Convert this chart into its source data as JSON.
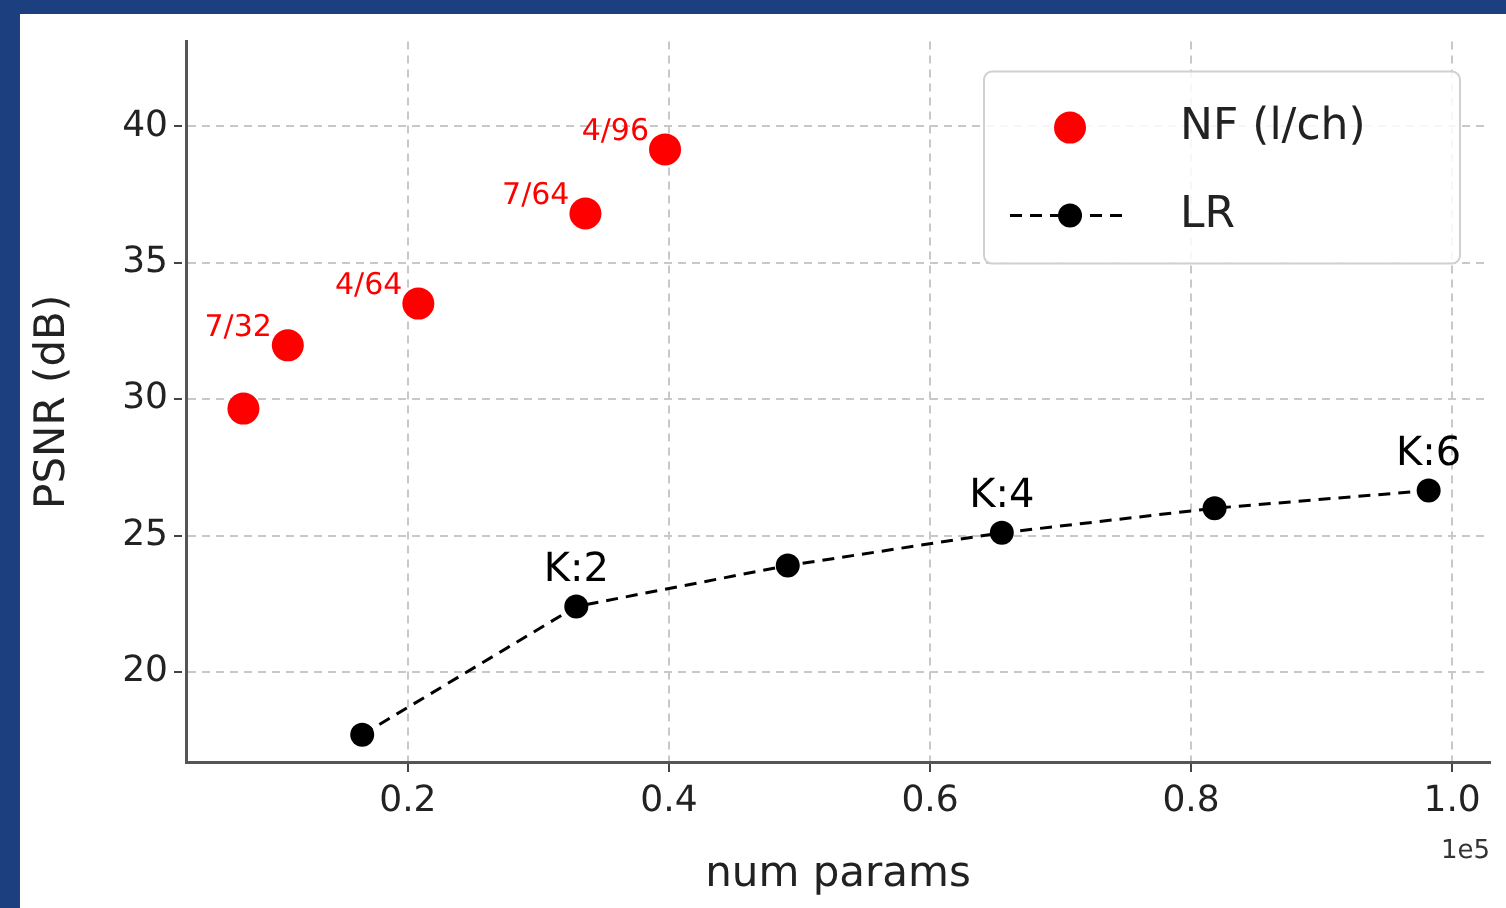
{
  "chart_data": {
    "type": "scatter",
    "xlabel": "num params",
    "ylabel": "PSNR (dB)",
    "xlim": [
      0.03,
      1.029
    ],
    "xticks": [
      {
        "value": 0.2,
        "label": "0.2"
      },
      {
        "value": 0.4,
        "label": "0.4"
      },
      {
        "value": 0.6,
        "label": "0.6"
      },
      {
        "value": 0.8,
        "label": "0.8"
      },
      {
        "value": 1.0,
        "label": "1.0"
      }
    ],
    "ylim": [
      16.7,
      43.1
    ],
    "yticks": [
      20,
      25,
      30,
      35,
      40
    ],
    "grid": true,
    "legend": "top right",
    "series": [
      {
        "name": "NF (l/ch)",
        "type": "scatter",
        "color": "#ff0000",
        "marker": "circle",
        "x": [
          0.074,
          0.108,
          0.208,
          0.336,
          0.397
        ],
        "values": [
          29.65,
          31.97,
          33.5,
          36.8,
          39.15
        ]
      },
      {
        "name": "LR",
        "type": "line",
        "color": "#000000",
        "marker": "circle",
        "line_style": "dashed",
        "x": [
          0.165,
          0.329,
          0.491,
          0.655,
          0.818,
          0.982
        ],
        "values": [
          17.7,
          22.4,
          23.9,
          25.1,
          26.0,
          26.65
        ]
      }
    ],
    "annotations": [
      {
        "text": "7/32",
        "x": 0.108,
        "y": 31.97
      },
      {
        "text": "4/64",
        "x": 0.208,
        "y": 33.5
      },
      {
        "text": "7/64",
        "x": 0.336,
        "y": 36.8
      },
      {
        "text": "4/96",
        "x": 0.397,
        "y": 39.15
      },
      {
        "text": "K:2",
        "x": 0.329,
        "y": 22.4
      },
      {
        "text": "K:4",
        "x": 0.655,
        "y": 25.1
      },
      {
        "text": "K:6",
        "x": 0.982,
        "y": 26.65
      },
      "1e5"
    ]
  }
}
